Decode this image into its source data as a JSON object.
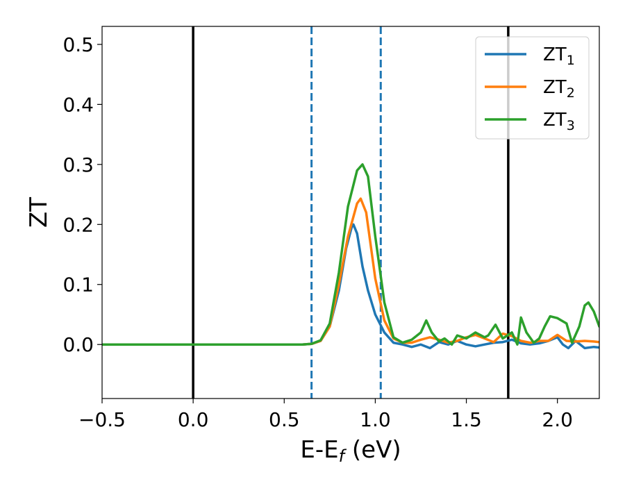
{
  "chart_data": {
    "type": "line",
    "xlabel": "E-E",
    "xlabel_subscript": "f",
    "xlabel_unit": " (eV)",
    "ylabel": "ZT",
    "xlim": [
      -0.5,
      2.23
    ],
    "ylim": [
      -0.09,
      0.53
    ],
    "xticks": [
      -0.5,
      0.0,
      0.5,
      1.0,
      1.5,
      2.0
    ],
    "xtick_labels": [
      "−0.5",
      "0.0",
      "0.5",
      "1.0",
      "1.5",
      "2.0"
    ],
    "yticks": [
      0.0,
      0.1,
      0.2,
      0.3,
      0.4,
      0.5
    ],
    "ytick_labels": [
      "0.0",
      "0.1",
      "0.2",
      "0.3",
      "0.4",
      "0.5"
    ],
    "grid": false,
    "legend_position": "top-right",
    "vertical_lines": [
      {
        "x": 0.0,
        "style": "solid",
        "color": "#000000"
      },
      {
        "x": 1.73,
        "style": "solid",
        "color": "#000000"
      },
      {
        "x": 0.65,
        "style": "dashed",
        "color": "#1f77b4"
      },
      {
        "x": 1.03,
        "style": "dashed",
        "color": "#1f77b4"
      }
    ],
    "series": [
      {
        "name": "ZT",
        "name_subscript": "1",
        "color": "#1f77b4",
        "x": [
          -0.5,
          0.6,
          0.65,
          0.7,
          0.75,
          0.8,
          0.84,
          0.87,
          0.88,
          0.9,
          0.93,
          0.96,
          1.0,
          1.05,
          1.1,
          1.15,
          1.2,
          1.25,
          1.3,
          1.35,
          1.4,
          1.45,
          1.5,
          1.55,
          1.6,
          1.65,
          1.7,
          1.75,
          1.8,
          1.85,
          1.9,
          1.95,
          2.0,
          2.03,
          2.06,
          2.1,
          2.15,
          2.2,
          2.23
        ],
        "y": [
          0.0,
          0.0,
          0.001,
          0.006,
          0.03,
          0.09,
          0.16,
          0.195,
          0.2,
          0.185,
          0.13,
          0.09,
          0.05,
          0.02,
          0.003,
          0.0,
          -0.004,
          0.0,
          -0.006,
          0.004,
          0.0,
          0.006,
          0.0,
          -0.003,
          0.0,
          0.003,
          0.004,
          0.008,
          0.002,
          0.0,
          0.002,
          0.006,
          0.012,
          0.0,
          -0.006,
          0.006,
          -0.006,
          -0.004,
          -0.005
        ]
      },
      {
        "name": "ZT",
        "name_subscript": "2",
        "color": "#ff7f0e",
        "x": [
          -0.5,
          0.6,
          0.65,
          0.7,
          0.75,
          0.8,
          0.85,
          0.9,
          0.92,
          0.95,
          1.0,
          1.05,
          1.1,
          1.15,
          1.2,
          1.25,
          1.3,
          1.35,
          1.4,
          1.45,
          1.5,
          1.55,
          1.6,
          1.65,
          1.7,
          1.75,
          1.8,
          1.85,
          1.9,
          1.95,
          2.0,
          2.05,
          2.1,
          2.15,
          2.2,
          2.23
        ],
        "y": [
          0.0,
          0.0,
          0.001,
          0.006,
          0.03,
          0.1,
          0.18,
          0.235,
          0.243,
          0.22,
          0.11,
          0.04,
          0.01,
          0.003,
          0.003,
          0.008,
          0.012,
          0.008,
          0.003,
          0.006,
          0.012,
          0.016,
          0.01,
          0.004,
          0.018,
          0.014,
          0.006,
          0.003,
          0.006,
          0.006,
          0.016,
          0.006,
          0.005,
          0.006,
          0.005,
          0.004
        ]
      },
      {
        "name": "ZT",
        "name_subscript": "3",
        "color": "#2ca02c",
        "x": [
          -0.5,
          0.6,
          0.65,
          0.7,
          0.75,
          0.8,
          0.85,
          0.9,
          0.93,
          0.96,
          1.0,
          1.05,
          1.1,
          1.15,
          1.2,
          1.25,
          1.28,
          1.31,
          1.35,
          1.38,
          1.42,
          1.45,
          1.5,
          1.55,
          1.6,
          1.62,
          1.66,
          1.7,
          1.75,
          1.78,
          1.8,
          1.83,
          1.87,
          1.9,
          1.93,
          1.96,
          2.0,
          2.05,
          2.08,
          2.12,
          2.15,
          2.17,
          2.2,
          2.23
        ],
        "y": [
          0.0,
          0.0,
          0.001,
          0.007,
          0.035,
          0.12,
          0.23,
          0.29,
          0.3,
          0.28,
          0.18,
          0.07,
          0.012,
          0.003,
          0.008,
          0.02,
          0.04,
          0.02,
          0.005,
          0.01,
          0.0,
          0.015,
          0.01,
          0.02,
          0.012,
          0.015,
          0.033,
          0.01,
          0.02,
          0.0,
          0.045,
          0.02,
          0.003,
          0.01,
          0.03,
          0.047,
          0.044,
          0.035,
          0.003,
          0.03,
          0.065,
          0.07,
          0.055,
          0.03
        ]
      }
    ]
  }
}
